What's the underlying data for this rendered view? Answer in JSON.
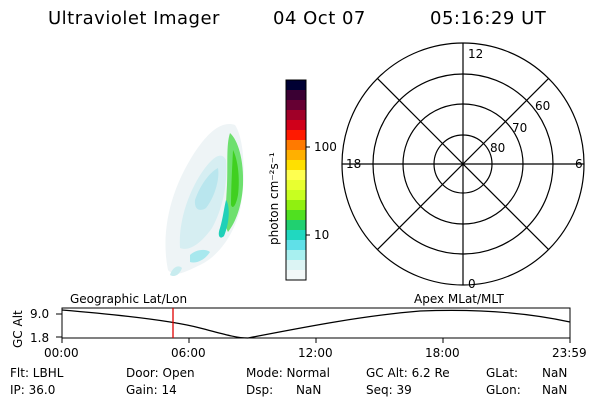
{
  "header": {
    "title": "Ultraviolet Imager",
    "date": "04 Oct 07",
    "time": "05:16:29 UT"
  },
  "colorbar": {
    "unit_label": "photon cm⁻²s⁻¹",
    "ticks": [
      "100",
      "10"
    ],
    "colors": [
      "#000033",
      "#3a0033",
      "#660033",
      "#a00028",
      "#d0001a",
      "#ff1a00",
      "#ff7a00",
      "#ffb000",
      "#ffe000",
      "#ffff50",
      "#e8ff30",
      "#c8ff20",
      "#90f010",
      "#50e020",
      "#20d070",
      "#20d8c0",
      "#60e0e8",
      "#a8f0f0",
      "#dcf4f4",
      "#f2f8f8"
    ]
  },
  "polar": {
    "mlt_top": "12",
    "mlt_left": "18",
    "mlt_right": "6",
    "mlt_bottom": "0",
    "lat_labels": [
      "60",
      "70",
      "80"
    ]
  },
  "altitude_plot": {
    "ylabel": "GC Alt",
    "y_ticks": [
      "9.0",
      "1.8"
    ],
    "left_label": "Geographic Lat/Lon",
    "right_label": "Apex MLat/MLT",
    "x_ticks": [
      "00:00",
      "06:00",
      "12:00",
      "18:00",
      "23:59"
    ],
    "marker_time": "05:16:29",
    "marker_color": "#e00000"
  },
  "status": {
    "flt": "Flt: LBHL",
    "door": "Door: Open",
    "mode": "Mode: Normal",
    "gc_alt": "GC Alt: 6.2 Re",
    "glat_label": "GLat:",
    "glat_value": "NaN",
    "ip": "IP: 36.0",
    "gain": "Gain: 14",
    "dsp_label": "Dsp:",
    "dsp_value": "NaN",
    "seq": "Seq: 39",
    "glon_label": "GLon:",
    "glon_value": "NaN"
  }
}
